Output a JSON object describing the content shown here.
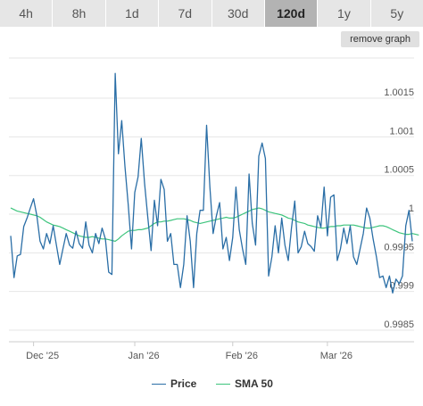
{
  "timeframes": [
    {
      "label": "4h",
      "active": false
    },
    {
      "label": "8h",
      "active": false
    },
    {
      "label": "1d",
      "active": false
    },
    {
      "label": "7d",
      "active": false
    },
    {
      "label": "30d",
      "active": false
    },
    {
      "label": "120d",
      "active": true
    },
    {
      "label": "1y",
      "active": false
    },
    {
      "label": "5y",
      "active": false
    }
  ],
  "remove_graph_label": "remove graph",
  "chart_data": {
    "type": "line",
    "ylim": [
      0.99835,
      1.00202
    ],
    "y_ticks": [
      {
        "value": 0.9985,
        "label": "0.9985"
      },
      {
        "value": 0.999,
        "label": "0.999"
      },
      {
        "value": 0.9995,
        "label": "0.9995"
      },
      {
        "value": 1.0,
        "label": "1"
      },
      {
        "value": 1.0005,
        "label": "1.0005"
      },
      {
        "value": 1.001,
        "label": "1.001"
      },
      {
        "value": 1.0015,
        "label": "1.0015"
      }
    ],
    "x_ticks": [
      "Dec '25",
      "Jan '26",
      "Feb '26",
      "Mar '26"
    ],
    "x_tick_index": [
      7,
      38,
      68,
      97
    ],
    "grid": "horizontal",
    "legend_position": "bottom",
    "series": [
      {
        "name": "Price",
        "color": "#2a6ea6",
        "values": [
          0.99972,
          0.99918,
          0.99946,
          0.99948,
          0.99984,
          0.99995,
          1.00008,
          1.0002,
          0.99998,
          0.99965,
          0.99955,
          0.99975,
          0.99962,
          0.99985,
          0.9996,
          0.99935,
          0.99955,
          0.99975,
          0.9996,
          0.99956,
          0.99978,
          0.99962,
          0.99956,
          0.9999,
          0.9996,
          0.9995,
          0.99975,
          0.99962,
          0.99982,
          0.99968,
          0.99925,
          0.99922,
          1.00182,
          1.00078,
          1.00121,
          1.00062,
          1.00012,
          0.99955,
          1.00028,
          1.00048,
          1.00098,
          1.0004,
          0.99995,
          0.99953,
          1.00018,
          0.99985,
          1.00045,
          1.00032,
          0.99965,
          0.99975,
          0.99935,
          0.99935,
          0.99905,
          0.99935,
          0.99998,
          0.99965,
          0.99905,
          0.99975,
          1.00005,
          1.00005,
          1.00115,
          1.00035,
          0.99975,
          0.99998,
          1.00015,
          0.99955,
          0.9997,
          0.9994,
          0.9997,
          1.00035,
          0.9998,
          0.99955,
          0.99935,
          1.00052,
          0.99988,
          0.9996,
          1.00075,
          1.00092,
          1.00072,
          0.9992,
          0.99945,
          0.99985,
          0.9995,
          0.99995,
          0.9996,
          0.9994,
          0.99982,
          1.00017,
          0.9995,
          0.99958,
          0.99978,
          0.99962,
          0.99958,
          0.99952,
          0.99998,
          0.99983,
          1.00035,
          0.99972,
          1.00022,
          1.00025,
          0.9994,
          0.99955,
          0.99982,
          0.99962,
          0.99985,
          0.99945,
          0.99935,
          0.99955,
          0.99975,
          1.00008,
          0.99995,
          0.99968,
          0.99945,
          0.99918,
          0.9992,
          0.99905,
          0.9992,
          0.99898,
          0.99916,
          0.9991,
          0.9992,
          0.99985,
          1.00005,
          0.99965
        ]
      },
      {
        "name": "SMA 50",
        "color": "#3cc47c",
        "values": [
          1.00008,
          1.00006,
          1.00004,
          1.00003,
          1.00002,
          1.00001,
          1.0,
          0.99999,
          0.99998,
          0.99996,
          0.99993,
          0.9999,
          0.99988,
          0.99986,
          0.99985,
          0.99984,
          0.99982,
          0.9998,
          0.99978,
          0.99976,
          0.99974,
          0.99972,
          0.99971,
          0.9997,
          0.9997,
          0.99971,
          0.9997,
          0.99969,
          0.99968,
          0.99968,
          0.99967,
          0.99966,
          0.99965,
          0.99968,
          0.99972,
          0.99975,
          0.99978,
          0.99979,
          0.99979,
          0.9998,
          0.9998,
          0.99981,
          0.99982,
          0.99985,
          0.99988,
          0.9999,
          0.9999,
          0.99991,
          0.99991,
          0.99992,
          0.99993,
          0.99994,
          0.99994,
          0.99994,
          0.99993,
          0.99992,
          0.9999,
          0.99989,
          0.99988,
          0.99989,
          0.9999,
          0.99991,
          0.99992,
          0.99993,
          0.99994,
          0.99995,
          0.99996,
          0.99995,
          0.99995,
          0.99996,
          0.99998,
          1.0,
          1.00002,
          1.00004,
          1.00006,
          1.00007,
          1.00008,
          1.00007,
          1.00005,
          1.00003,
          1.00002,
          1.00001,
          1.0,
          0.99999,
          0.99997,
          0.99995,
          0.99994,
          0.99992,
          0.9999,
          0.99989,
          0.99988,
          0.99986,
          0.99985,
          0.99984,
          0.99983,
          0.99982,
          0.99982,
          0.99983,
          0.99984,
          0.99984,
          0.99985,
          0.99985,
          0.99986,
          0.99986,
          0.99986,
          0.99986,
          0.99985,
          0.99984,
          0.99983,
          0.99982,
          0.99982,
          0.99983,
          0.99984,
          0.99985,
          0.99985,
          0.99984,
          0.99982,
          0.9998,
          0.99978,
          0.99976,
          0.99975,
          0.99974,
          0.99974,
          0.99975,
          0.99974,
          0.99973
        ]
      }
    ]
  }
}
